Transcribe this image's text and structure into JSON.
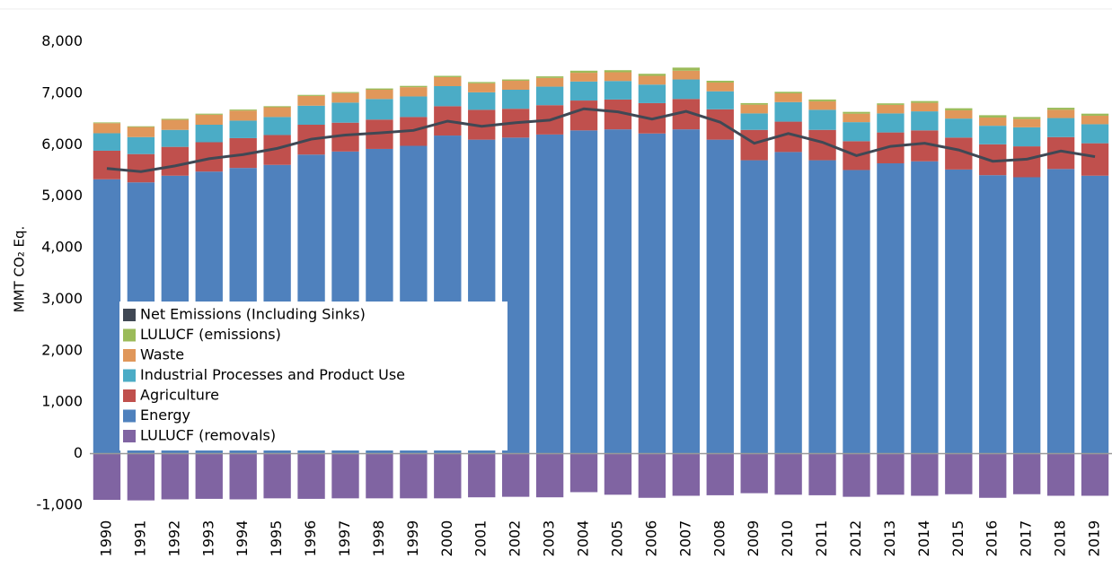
{
  "chart_data": {
    "type": "bar",
    "stacked": true,
    "y_label": "MMT CO₂ Eq.",
    "categories": [
      "1990",
      "1991",
      "1992",
      "1993",
      "1994",
      "1995",
      "1996",
      "1997",
      "1998",
      "1999",
      "2000",
      "2001",
      "2002",
      "2003",
      "2004",
      "2005",
      "2006",
      "2007",
      "2008",
      "2009",
      "2010",
      "2011",
      "2012",
      "2013",
      "2014",
      "2015",
      "2016",
      "2017",
      "2018",
      "2019"
    ],
    "series": [
      {
        "name": "Net Emissions (Including Sinks)",
        "color": "#404854",
        "type": "line",
        "values": [
          5540,
          5480,
          5590,
          5730,
          5810,
          5930,
          6110,
          6190,
          6230,
          6280,
          6460,
          6360,
          6430,
          6480,
          6700,
          6640,
          6500,
          6650,
          6440,
          6030,
          6220,
          6050,
          5790,
          5970,
          6030,
          5900,
          5680,
          5720,
          5880,
          5770
        ]
      },
      {
        "name": "LULUCF (emissions)",
        "color": "#9bbb59",
        "values": [
          15,
          15,
          20,
          20,
          20,
          20,
          20,
          20,
          25,
          25,
          25,
          25,
          25,
          30,
          40,
          40,
          40,
          60,
          35,
          30,
          30,
          35,
          35,
          30,
          35,
          40,
          45,
          40,
          40,
          40
        ]
      },
      {
        "name": "Waste",
        "color": "#e0975a",
        "values": [
          195,
          195,
          195,
          195,
          195,
          190,
          190,
          185,
          180,
          180,
          175,
          175,
          175,
          170,
          170,
          170,
          170,
          170,
          170,
          170,
          170,
          165,
          165,
          165,
          165,
          160,
          160,
          160,
          160,
          165
        ]
      },
      {
        "name": "Industrial Processes and Product Use",
        "color": "#4bacc6",
        "values": [
          340,
          330,
          330,
          340,
          340,
          350,
          370,
          390,
          400,
          400,
          390,
          340,
          370,
          360,
          370,
          360,
          360,
          380,
          350,
          320,
          380,
          390,
          370,
          370,
          370,
          370,
          360,
          370,
          370,
          370
        ]
      },
      {
        "name": "Agriculture",
        "color": "#c0504d",
        "values": [
          555,
          550,
          560,
          570,
          580,
          580,
          580,
          560,
          570,
          560,
          570,
          580,
          560,
          570,
          580,
          580,
          590,
          590,
          590,
          590,
          590,
          590,
          560,
          600,
          600,
          620,
          600,
          600,
          620,
          630
        ]
      },
      {
        "name": "Energy",
        "color": "#4f81bd",
        "values": [
          5330,
          5270,
          5400,
          5480,
          5550,
          5610,
          5810,
          5870,
          5920,
          5980,
          6180,
          6100,
          6140,
          6200,
          6280,
          6300,
          6220,
          6300,
          6100,
          5700,
          5860,
          5700,
          5510,
          5640,
          5680,
          5520,
          5410,
          5370,
          5530,
          5400
        ]
      },
      {
        "name": "LULUCF (removals)",
        "color": "#8064a2",
        "values": [
          -900,
          -910,
          -890,
          -880,
          -890,
          -870,
          -880,
          -870,
          -870,
          -870,
          -870,
          -850,
          -840,
          -850,
          -750,
          -800,
          -860,
          -820,
          -810,
          -770,
          -800,
          -810,
          -840,
          -800,
          -820,
          -790,
          -860,
          -790,
          -820,
          -820
        ]
      }
    ],
    "ylim": [
      -1300,
      8500
    ],
    "yticks": [
      {
        "value": -1000,
        "label": "-1,000"
      },
      0,
      {
        "value": 1000,
        "label": "1,000"
      },
      {
        "value": 2000,
        "label": "2,000"
      },
      {
        "value": 3000,
        "label": "3,000"
      },
      {
        "value": 4000,
        "label": "4,000"
      },
      {
        "value": 5000,
        "label": "5,000"
      },
      {
        "value": 6000,
        "label": "6,000"
      },
      {
        "value": 7000,
        "label": "7,000"
      },
      {
        "value": 8000,
        "label": "8,000"
      }
    ],
    "grid": false
  }
}
